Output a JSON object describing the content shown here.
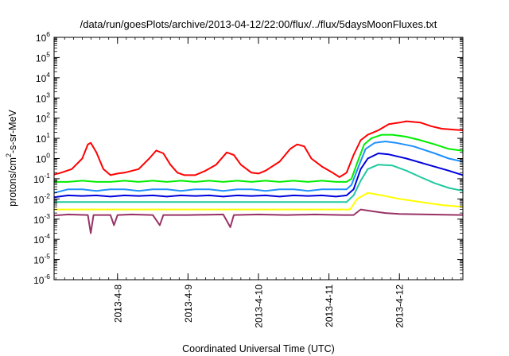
{
  "chart_data": {
    "type": "line",
    "title": "/data/run/goesPlots/archive/2013-04-12/22:00/flux/../flux/5daysMoonFluxes.txt",
    "xlabel": "Coordinated Universal Time (UTC)",
    "ylabel": {
      "text_before": "protons/cm",
      "superscript": "2",
      "text_after": "-s-sr-MeV"
    },
    "y_scale": "log",
    "ylim": [
      1e-06,
      1000000.0
    ],
    "yticks": [
      {
        "base": "10",
        "exp": "-6"
      },
      {
        "base": "10",
        "exp": "-5"
      },
      {
        "base": "10",
        "exp": "-4"
      },
      {
        "base": "10",
        "exp": "-3"
      },
      {
        "base": "10",
        "exp": "-2"
      },
      {
        "base": "10",
        "exp": "-1"
      },
      {
        "base": "10",
        "exp": "0"
      },
      {
        "base": "10",
        "exp": "1"
      },
      {
        "base": "10",
        "exp": "2"
      },
      {
        "base": "10",
        "exp": "3"
      },
      {
        "base": "10",
        "exp": "4"
      },
      {
        "base": "10",
        "exp": "5"
      },
      {
        "base": "10",
        "exp": "6"
      }
    ],
    "xlim": [
      7.1,
      12.9
    ],
    "x_unit": "day of April 2013",
    "xticks": [
      {
        "x": 8,
        "label": "2013-4-8"
      },
      {
        "x": 9,
        "label": "2013-4-9"
      },
      {
        "x": 10,
        "label": "2013-4-10"
      },
      {
        "x": 11,
        "label": "2013-4-11"
      },
      {
        "x": 12,
        "label": "2013-4-12"
      }
    ],
    "grid": false,
    "legend": "none",
    "series": [
      {
        "color": "#ff0000",
        "points": [
          [
            7.1,
            0.16
          ],
          [
            7.2,
            0.2
          ],
          [
            7.35,
            0.3
          ],
          [
            7.5,
            1.0
          ],
          [
            7.58,
            5.0
          ],
          [
            7.62,
            6.0
          ],
          [
            7.7,
            2.0
          ],
          [
            7.8,
            0.3
          ],
          [
            7.9,
            0.15
          ],
          [
            8.0,
            0.18
          ],
          [
            8.1,
            0.2
          ],
          [
            8.3,
            0.3
          ],
          [
            8.45,
            1.0
          ],
          [
            8.55,
            2.5
          ],
          [
            8.65,
            1.8
          ],
          [
            8.75,
            0.5
          ],
          [
            8.85,
            0.2
          ],
          [
            8.95,
            0.15
          ],
          [
            9.1,
            0.15
          ],
          [
            9.25,
            0.25
          ],
          [
            9.4,
            0.5
          ],
          [
            9.55,
            2.0
          ],
          [
            9.65,
            1.5
          ],
          [
            9.75,
            0.5
          ],
          [
            9.9,
            0.2
          ],
          [
            10.0,
            0.18
          ],
          [
            10.1,
            0.25
          ],
          [
            10.3,
            0.7
          ],
          [
            10.45,
            3.0
          ],
          [
            10.55,
            5.0
          ],
          [
            10.65,
            4.0
          ],
          [
            10.75,
            1.0
          ],
          [
            10.9,
            0.4
          ],
          [
            11.05,
            0.2
          ],
          [
            11.15,
            0.12
          ],
          [
            11.25,
            0.2
          ],
          [
            11.35,
            1.5
          ],
          [
            11.45,
            8.0
          ],
          [
            11.55,
            15.0
          ],
          [
            11.7,
            25.0
          ],
          [
            11.85,
            50.0
          ],
          [
            12.0,
            60.0
          ],
          [
            12.1,
            70.0
          ],
          [
            12.3,
            60.0
          ],
          [
            12.45,
            40.0
          ],
          [
            12.6,
            30.0
          ],
          [
            12.9,
            25.0
          ]
        ]
      },
      {
        "color": "#00ee00",
        "points": [
          [
            7.1,
            0.07
          ],
          [
            7.3,
            0.07
          ],
          [
            7.5,
            0.08
          ],
          [
            7.7,
            0.07
          ],
          [
            7.9,
            0.07
          ],
          [
            8.1,
            0.08
          ],
          [
            8.3,
            0.07
          ],
          [
            8.5,
            0.08
          ],
          [
            8.7,
            0.07
          ],
          [
            8.9,
            0.08
          ],
          [
            9.1,
            0.07
          ],
          [
            9.3,
            0.08
          ],
          [
            9.5,
            0.07
          ],
          [
            9.7,
            0.08
          ],
          [
            9.9,
            0.07
          ],
          [
            10.1,
            0.08
          ],
          [
            10.3,
            0.07
          ],
          [
            10.5,
            0.08
          ],
          [
            10.7,
            0.07
          ],
          [
            10.9,
            0.08
          ],
          [
            11.1,
            0.07
          ],
          [
            11.25,
            0.07
          ],
          [
            11.32,
            0.1
          ],
          [
            11.4,
            0.6
          ],
          [
            11.5,
            5.0
          ],
          [
            11.6,
            10.0
          ],
          [
            11.75,
            15.0
          ],
          [
            11.9,
            15.0
          ],
          [
            12.1,
            12.0
          ],
          [
            12.3,
            8.0
          ],
          [
            12.5,
            5.0
          ],
          [
            12.7,
            3.0
          ],
          [
            12.9,
            2.4
          ]
        ]
      },
      {
        "color": "#1e90ff",
        "points": [
          [
            7.1,
            0.02
          ],
          [
            7.3,
            0.03
          ],
          [
            7.5,
            0.03
          ],
          [
            7.7,
            0.025
          ],
          [
            7.9,
            0.03
          ],
          [
            8.1,
            0.03
          ],
          [
            8.3,
            0.025
          ],
          [
            8.5,
            0.03
          ],
          [
            8.7,
            0.03
          ],
          [
            8.9,
            0.025
          ],
          [
            9.1,
            0.03
          ],
          [
            9.3,
            0.03
          ],
          [
            9.5,
            0.025
          ],
          [
            9.7,
            0.03
          ],
          [
            9.9,
            0.03
          ],
          [
            10.1,
            0.025
          ],
          [
            10.3,
            0.03
          ],
          [
            10.5,
            0.03
          ],
          [
            10.7,
            0.025
          ],
          [
            10.9,
            0.03
          ],
          [
            11.1,
            0.03
          ],
          [
            11.25,
            0.03
          ],
          [
            11.32,
            0.05
          ],
          [
            11.42,
            0.4
          ],
          [
            11.52,
            3.0
          ],
          [
            11.65,
            6.0
          ],
          [
            11.8,
            7.0
          ],
          [
            11.95,
            6.0
          ],
          [
            12.2,
            4.0
          ],
          [
            12.5,
            1.8
          ],
          [
            12.7,
            1.0
          ],
          [
            12.9,
            0.7
          ]
        ]
      },
      {
        "color": "#0000dd",
        "points": [
          [
            7.1,
            0.012
          ],
          [
            7.3,
            0.015
          ],
          [
            7.5,
            0.014
          ],
          [
            7.7,
            0.015
          ],
          [
            7.9,
            0.013
          ],
          [
            8.1,
            0.015
          ],
          [
            8.3,
            0.014
          ],
          [
            8.5,
            0.015
          ],
          [
            8.7,
            0.013
          ],
          [
            8.9,
            0.015
          ],
          [
            9.1,
            0.014
          ],
          [
            9.3,
            0.015
          ],
          [
            9.5,
            0.013
          ],
          [
            9.7,
            0.015
          ],
          [
            9.9,
            0.014
          ],
          [
            10.1,
            0.015
          ],
          [
            10.3,
            0.013
          ],
          [
            10.5,
            0.015
          ],
          [
            10.7,
            0.014
          ],
          [
            10.9,
            0.015
          ],
          [
            11.1,
            0.013
          ],
          [
            11.25,
            0.015
          ],
          [
            11.35,
            0.03
          ],
          [
            11.45,
            0.3
          ],
          [
            11.55,
            1.0
          ],
          [
            11.7,
            1.8
          ],
          [
            11.85,
            1.6
          ],
          [
            12.1,
            1.0
          ],
          [
            12.4,
            0.5
          ],
          [
            12.7,
            0.25
          ],
          [
            12.9,
            0.15
          ]
        ]
      },
      {
        "color": "#20c9a0",
        "points": [
          [
            7.1,
            0.007
          ],
          [
            7.4,
            0.007
          ],
          [
            7.7,
            0.007
          ],
          [
            8.0,
            0.007
          ],
          [
            8.3,
            0.007
          ],
          [
            8.6,
            0.007
          ],
          [
            8.9,
            0.007
          ],
          [
            9.2,
            0.007
          ],
          [
            9.5,
            0.007
          ],
          [
            9.8,
            0.007
          ],
          [
            10.1,
            0.007
          ],
          [
            10.4,
            0.007
          ],
          [
            10.7,
            0.007
          ],
          [
            11.0,
            0.007
          ],
          [
            11.25,
            0.007
          ],
          [
            11.35,
            0.015
          ],
          [
            11.45,
            0.08
          ],
          [
            11.55,
            0.3
          ],
          [
            11.7,
            0.5
          ],
          [
            11.9,
            0.45
          ],
          [
            12.1,
            0.25
          ],
          [
            12.3,
            0.12
          ],
          [
            12.5,
            0.06
          ],
          [
            12.7,
            0.035
          ],
          [
            12.9,
            0.025
          ]
        ]
      },
      {
        "color": "#ffff00",
        "points": [
          [
            7.1,
            0.003
          ],
          [
            7.5,
            0.003
          ],
          [
            8.0,
            0.003
          ],
          [
            8.5,
            0.003
          ],
          [
            9.0,
            0.003
          ],
          [
            9.5,
            0.003
          ],
          [
            10.0,
            0.003
          ],
          [
            10.5,
            0.003
          ],
          [
            11.0,
            0.003
          ],
          [
            11.3,
            0.003
          ],
          [
            11.4,
            0.01
          ],
          [
            11.55,
            0.02
          ],
          [
            11.75,
            0.015
          ],
          [
            12.0,
            0.01
          ],
          [
            12.3,
            0.007
          ],
          [
            12.6,
            0.005
          ],
          [
            12.9,
            0.004
          ]
        ]
      },
      {
        "color": "#993366",
        "points": [
          [
            7.1,
            0.0015
          ],
          [
            7.3,
            0.0017
          ],
          [
            7.58,
            0.0016
          ],
          [
            7.62,
            0.0002
          ],
          [
            7.66,
            0.0016
          ],
          [
            7.9,
            0.0016
          ],
          [
            7.95,
            0.0005
          ],
          [
            8.0,
            0.0016
          ],
          [
            8.2,
            0.0017
          ],
          [
            8.5,
            0.0016
          ],
          [
            8.6,
            0.0005
          ],
          [
            8.65,
            0.0016
          ],
          [
            9.0,
            0.0016
          ],
          [
            9.5,
            0.0017
          ],
          [
            9.6,
            0.0004
          ],
          [
            9.65,
            0.0016
          ],
          [
            10.0,
            0.0017
          ],
          [
            10.4,
            0.0016
          ],
          [
            10.8,
            0.0017
          ],
          [
            11.2,
            0.0016
          ],
          [
            11.35,
            0.0016
          ],
          [
            11.45,
            0.003
          ],
          [
            11.6,
            0.0025
          ],
          [
            11.8,
            0.002
          ],
          [
            12.0,
            0.0018
          ],
          [
            12.4,
            0.0017
          ],
          [
            12.9,
            0.0016
          ]
        ]
      }
    ]
  }
}
